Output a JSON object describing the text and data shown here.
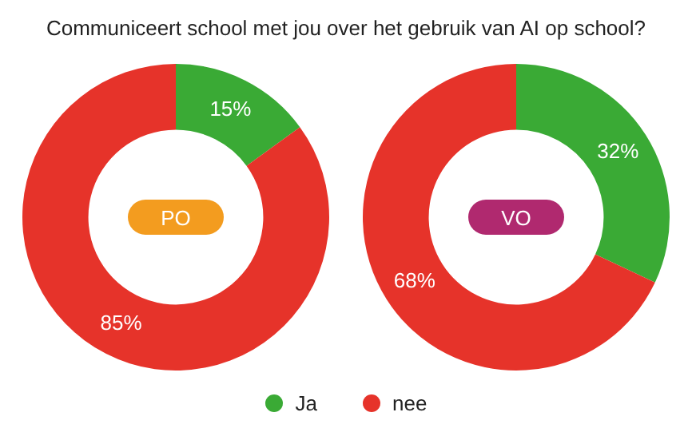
{
  "chart_data": [
    {
      "type": "donut",
      "title": "Communiceert school met jou over het gebruik van AI op school?",
      "categories": [
        "Ja",
        "nee"
      ],
      "values": [
        15,
        85
      ],
      "value_labels": [
        "15%",
        "85%"
      ],
      "colors": [
        "#3aaa35",
        "#e6332a"
      ],
      "annotations": [
        "PO"
      ],
      "legend": "bottom"
    },
    {
      "type": "donut",
      "categories": [
        null,
        null
      ],
      "values": [
        32,
        68
      ],
      "value_labels": [
        "32%",
        "68%"
      ],
      "colors": [
        "#3aaa35",
        "#e6332a"
      ],
      "annotations": [
        "VO"
      ]
    }
  ]
}
